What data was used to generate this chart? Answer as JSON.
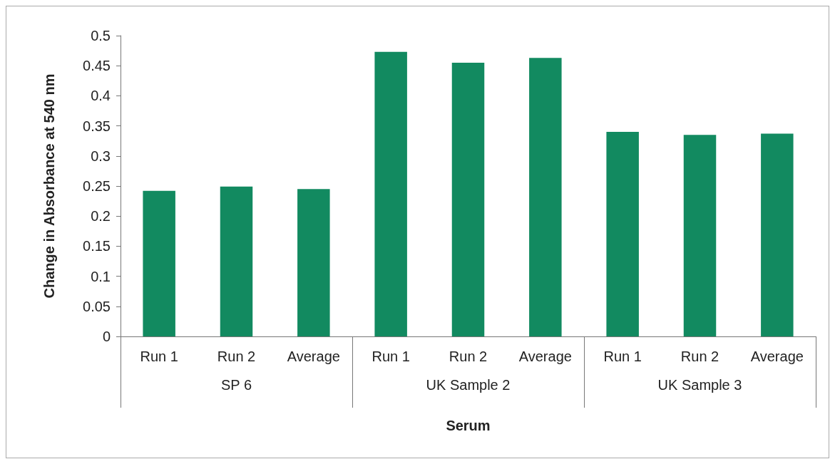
{
  "chart_data": {
    "type": "bar",
    "xlabel": "Serum",
    "ylabel": "Change in Absorbance at 540 nm",
    "categories": [
      "Run 1",
      "Run 2",
      "Average",
      "Run 1",
      "Run 2",
      "Average",
      "Run 1",
      "Run 2",
      "Average"
    ],
    "values": [
      0.242,
      0.249,
      0.245,
      0.473,
      0.455,
      0.463,
      0.34,
      0.335,
      0.337
    ],
    "color": "#128a60",
    "annotations": [
      "SP 6",
      "UK Sample 2",
      "UK Sample 3"
    ],
    "ylim": [
      0,
      0.5
    ],
    "yticks": [
      0,
      0.05,
      0.1,
      0.15,
      0.2,
      0.25,
      0.3,
      0.35,
      0.4,
      0.45,
      0.5
    ],
    "grid": false
  }
}
